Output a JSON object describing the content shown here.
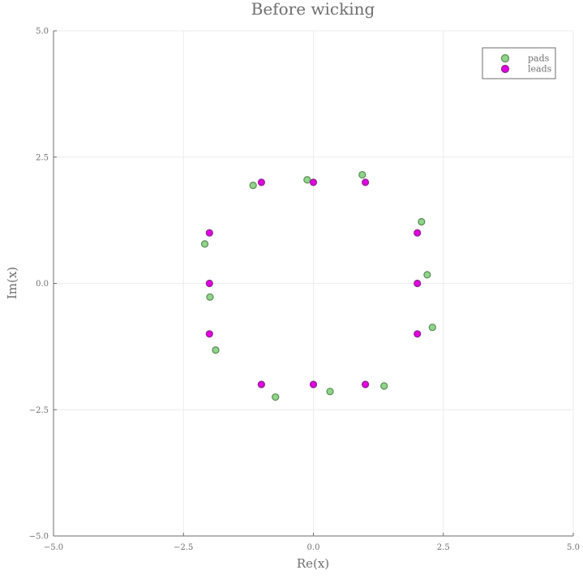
{
  "chart_data": {
    "type": "scatter",
    "title": "Before wicking",
    "xlabel": "Re(x)",
    "ylabel": "Im(x)",
    "xlim": [
      -5.0,
      5.0
    ],
    "ylim": [
      -5.0,
      5.0
    ],
    "xticks": [
      -5.0,
      -2.5,
      0.0,
      2.5,
      5.0
    ],
    "yticks": [
      -5.0,
      -2.5,
      0.0,
      2.5,
      5.0
    ],
    "xtick_labels": [
      "−5.0",
      "−2.5",
      "0.0",
      "2.5",
      "5.0"
    ],
    "ytick_labels": [
      "−5.0",
      "−2.5",
      "0.0",
      "2.5",
      "5.0"
    ],
    "grid": true,
    "legend_position": "top-right",
    "series": [
      {
        "name": "pads",
        "color": "#8fd48a",
        "edge_color": "#5a8a55",
        "points": [
          [
            0.94,
            2.15
          ],
          [
            -0.12,
            2.05
          ],
          [
            -1.16,
            1.94
          ],
          [
            2.08,
            1.22
          ],
          [
            -2.09,
            0.78
          ],
          [
            2.19,
            0.17
          ],
          [
            -1.99,
            -0.27
          ],
          [
            2.29,
            -0.87
          ],
          [
            -1.88,
            -1.32
          ],
          [
            1.36,
            -2.03
          ],
          [
            0.32,
            -2.14
          ],
          [
            -0.73,
            -2.25
          ]
        ]
      },
      {
        "name": "leads",
        "color": "#e100e1",
        "edge_color": "#8a2a8a",
        "points": [
          [
            -1.0,
            2.0
          ],
          [
            0.0,
            2.0
          ],
          [
            1.0,
            2.0
          ],
          [
            -2.0,
            1.0
          ],
          [
            2.0,
            1.0
          ],
          [
            -2.0,
            0.0
          ],
          [
            2.0,
            0.0
          ],
          [
            -2.0,
            -1.0
          ],
          [
            2.0,
            -1.0
          ],
          [
            -1.0,
            -2.0
          ],
          [
            0.0,
            -2.0
          ],
          [
            1.0,
            -2.0
          ]
        ]
      }
    ]
  }
}
